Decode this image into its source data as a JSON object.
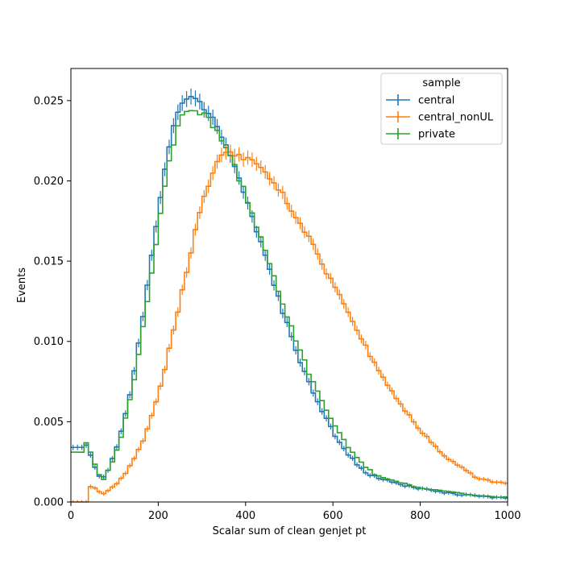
{
  "chart_data": {
    "type": "histogram",
    "xlabel": "Scalar sum of clean genjet pt",
    "ylabel": "Events",
    "xlim": [
      0,
      1000
    ],
    "ylim": [
      0,
      0.027
    ],
    "bin_width": 10,
    "xticks": [
      0,
      200,
      400,
      600,
      800,
      1000
    ],
    "xtick_labels": [
      "0",
      "200",
      "400",
      "600",
      "800",
      "1000"
    ],
    "yticks": [
      0.0,
      0.005,
      0.01,
      0.015,
      0.02,
      0.025
    ],
    "ytick_labels": [
      "0.000",
      "0.005",
      "0.010",
      "0.015",
      "0.020",
      "0.025"
    ],
    "grid": false,
    "legend": {
      "title": "sample",
      "placement": "top-right"
    },
    "series": [
      {
        "name": "central",
        "color": "#1f77b4",
        "style": "step-with-errorbars",
        "shape": {
          "peak_x": 265,
          "peak_y": 0.0252,
          "sigma_left": 80,
          "sigma_right": 170,
          "low_x": 30,
          "low_value": 0.0038,
          "low_start": 0.0034
        }
      },
      {
        "name": "central_nonUL",
        "color": "#ff7f0e",
        "style": "step-with-errorbars",
        "shape": {
          "peak_x": 360,
          "peak_y": 0.0217,
          "sigma_left": 105,
          "sigma_right": 235,
          "low_x": 40,
          "low_value": 0.0011,
          "low_start": 0.0
        }
      },
      {
        "name": "private",
        "color": "#2ca02c",
        "style": "step",
        "shape": {
          "peak_x": 270,
          "peak_y": 0.0245,
          "sigma_left": 82,
          "sigma_right": 175,
          "low_x": 30,
          "low_value": 0.0041,
          "low_start": 0.0031
        }
      }
    ]
  }
}
